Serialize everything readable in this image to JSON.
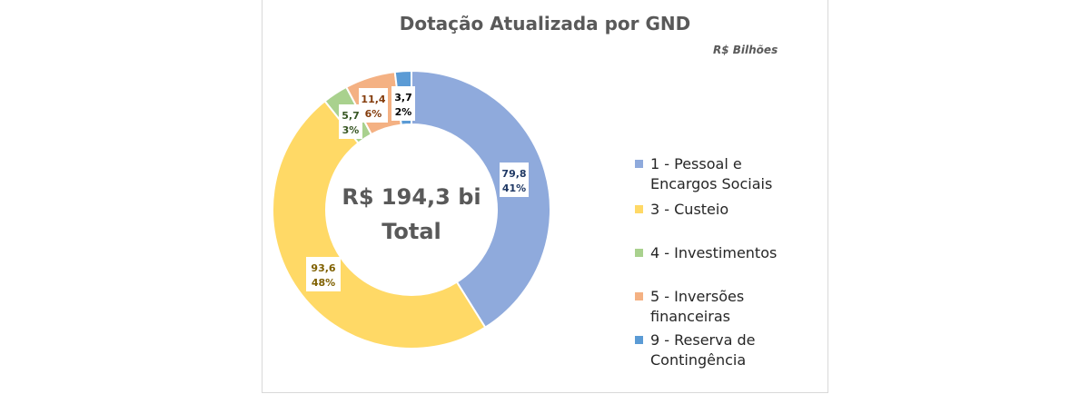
{
  "chart_data": {
    "type": "pie",
    "subtype": "doughnut",
    "title": "Dotação Atualizada por GND",
    "unit": "R$ Bilhões",
    "center_label": [
      "R$ 194,3 bi",
      "Total"
    ],
    "categories": [
      "1 - Pessoal e Encargos Sociais",
      "3 - Custeio",
      "4 - Investimentos",
      "5 - Inversões financeiras",
      "9 - Reserva de Contingência"
    ],
    "values": [
      79.8,
      93.6,
      5.7,
      11.4,
      3.7
    ],
    "value_labels": [
      "79,8",
      "93,6",
      "5,7",
      "11,4",
      "3,7"
    ],
    "percent_labels": [
      "41%",
      "48%",
      "3%",
      "6%",
      "2%"
    ],
    "colors": [
      "#8faadc",
      "#ffd966",
      "#a9d18e",
      "#f4b183",
      "#5b9bd5"
    ],
    "label_text_colors": [
      "#1f3864",
      "#7f6000",
      "#375623",
      "#843c0c",
      "#000000"
    ],
    "legend_position": "right"
  }
}
